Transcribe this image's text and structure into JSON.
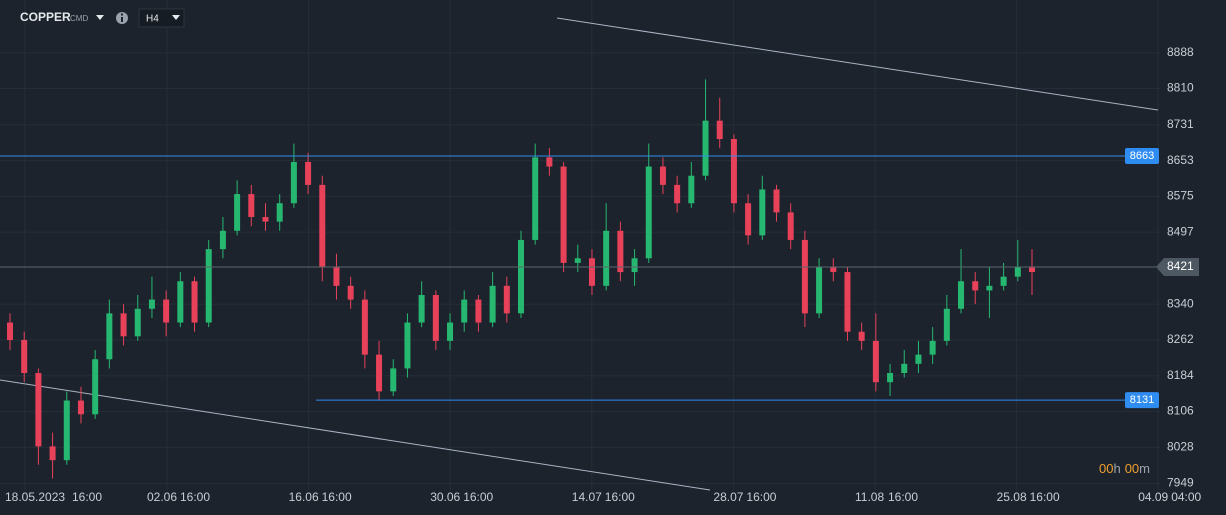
{
  "header": {
    "symbol": "COPPER",
    "badge": "CMD",
    "timeframe": "H4"
  },
  "chart_data": {
    "type": "candlestick",
    "x_labels": [
      "18.05.2023",
      "16:00",
      "02.06",
      "16:00",
      "16.06",
      "16:00",
      "30.06",
      "16:00",
      "14.07",
      "16:00",
      "28.07",
      "16:00",
      "11.08",
      "16:00",
      "25.08",
      "16:00",
      "04.09",
      "04:00"
    ],
    "candles": [
      [
        8300,
        8320,
        8240,
        8262
      ],
      [
        8262,
        8280,
        8170,
        8190
      ],
      [
        8190,
        8200,
        7990,
        8030
      ],
      [
        8030,
        8060,
        7960,
        8000
      ],
      [
        8000,
        8150,
        7990,
        8130
      ],
      [
        8130,
        8160,
        8080,
        8100
      ],
      [
        8100,
        8240,
        8090,
        8220
      ],
      [
        8220,
        8350,
        8200,
        8320
      ],
      [
        8320,
        8340,
        8250,
        8270
      ],
      [
        8270,
        8360,
        8260,
        8330
      ],
      [
        8330,
        8400,
        8310,
        8350
      ],
      [
        8350,
        8370,
        8270,
        8300
      ],
      [
        8300,
        8410,
        8290,
        8390
      ],
      [
        8390,
        8400,
        8280,
        8300
      ],
      [
        8300,
        8480,
        8290,
        8460
      ],
      [
        8460,
        8530,
        8440,
        8500
      ],
      [
        8500,
        8610,
        8490,
        8580
      ],
      [
        8580,
        8600,
        8510,
        8530
      ],
      [
        8530,
        8560,
        8500,
        8520
      ],
      [
        8520,
        8580,
        8500,
        8560
      ],
      [
        8560,
        8690,
        8550,
        8650
      ],
      [
        8650,
        8670,
        8580,
        8600
      ],
      [
        8600,
        8620,
        8390,
        8420
      ],
      [
        8420,
        8450,
        8350,
        8380
      ],
      [
        8380,
        8400,
        8330,
        8350
      ],
      [
        8350,
        8370,
        8200,
        8230
      ],
      [
        8230,
        8260,
        8130,
        8150
      ],
      [
        8150,
        8220,
        8140,
        8200
      ],
      [
        8200,
        8320,
        8180,
        8300
      ],
      [
        8300,
        8390,
        8290,
        8360
      ],
      [
        8360,
        8370,
        8240,
        8260
      ],
      [
        8260,
        8320,
        8240,
        8300
      ],
      [
        8300,
        8370,
        8280,
        8350
      ],
      [
        8350,
        8360,
        8280,
        8300
      ],
      [
        8300,
        8410,
        8290,
        8380
      ],
      [
        8380,
        8400,
        8300,
        8320
      ],
      [
        8320,
        8500,
        8310,
        8480
      ],
      [
        8480,
        8690,
        8470,
        8660
      ],
      [
        8660,
        8680,
        8620,
        8640
      ],
      [
        8640,
        8650,
        8410,
        8430
      ],
      [
        8430,
        8470,
        8410,
        8440
      ],
      [
        8440,
        8460,
        8360,
        8380
      ],
      [
        8380,
        8560,
        8370,
        8500
      ],
      [
        8500,
        8520,
        8390,
        8410
      ],
      [
        8410,
        8460,
        8380,
        8440
      ],
      [
        8440,
        8690,
        8430,
        8640
      ],
      [
        8640,
        8660,
        8580,
        8600
      ],
      [
        8600,
        8620,
        8540,
        8560
      ],
      [
        8560,
        8650,
        8550,
        8620
      ],
      [
        8620,
        8830,
        8610,
        8740
      ],
      [
        8740,
        8790,
        8680,
        8700
      ],
      [
        8700,
        8710,
        8540,
        8560
      ],
      [
        8560,
        8580,
        8470,
        8490
      ],
      [
        8490,
        8620,
        8480,
        8590
      ],
      [
        8590,
        8600,
        8520,
        8540
      ],
      [
        8540,
        8560,
        8460,
        8480
      ],
      [
        8480,
        8500,
        8290,
        8320
      ],
      [
        8320,
        8440,
        8310,
        8420
      ],
      [
        8420,
        8440,
        8390,
        8410
      ],
      [
        8410,
        8420,
        8260,
        8280
      ],
      [
        8280,
        8300,
        8240,
        8260
      ],
      [
        8260,
        8320,
        8150,
        8170
      ],
      [
        8170,
        8210,
        8140,
        8190
      ],
      [
        8190,
        8240,
        8180,
        8210
      ],
      [
        8210,
        8260,
        8190,
        8230
      ],
      [
        8230,
        8290,
        8210,
        8260
      ],
      [
        8260,
        8360,
        8250,
        8330
      ],
      [
        8330,
        8460,
        8320,
        8390
      ],
      [
        8390,
        8410,
        8340,
        8370
      ],
      [
        8370,
        8420,
        8310,
        8380
      ],
      [
        8380,
        8430,
        8370,
        8400
      ],
      [
        8400,
        8480,
        8390,
        8420
      ],
      [
        8420,
        8460,
        8360,
        8410
      ]
    ],
    "ylim": [
      7935,
      9003
    ],
    "yticks": [
      7949,
      8028,
      8106,
      8184,
      8262,
      8340,
      8497,
      8575,
      8653,
      8731,
      8810,
      8888
    ],
    "levels": [
      8663,
      8131
    ],
    "level_color": "#2f8cf0",
    "last_price": 8421,
    "up_color": "#26b870",
    "down_color": "#e8415a",
    "grid": true
  },
  "timer": [
    "00",
    "h",
    "00",
    "m"
  ]
}
